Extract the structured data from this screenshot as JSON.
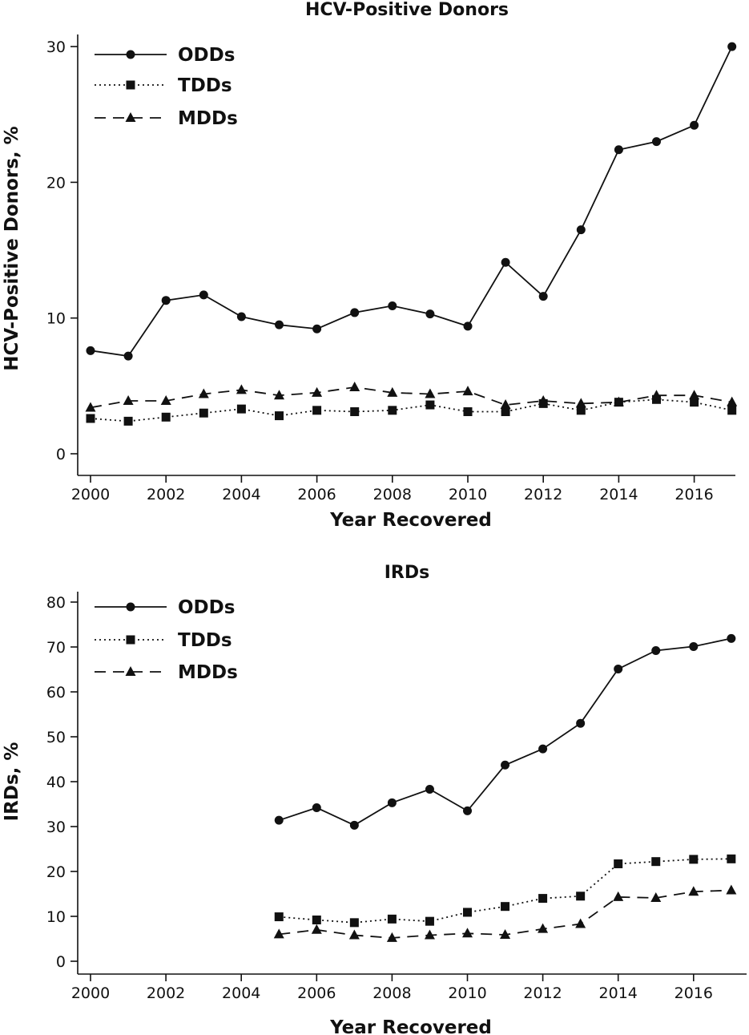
{
  "chart_data": [
    {
      "type": "line",
      "title": "HCV-Positive Donors",
      "xlabel": "Year Recovered",
      "ylabel": "HCV-Positive Donors, %",
      "xlim": [
        2000,
        2017
      ],
      "ylim": [
        0,
        30
      ],
      "x_ticks": [
        2000,
        2002,
        2004,
        2006,
        2008,
        2010,
        2012,
        2014,
        2016
      ],
      "y_ticks": [
        0,
        10,
        20,
        30
      ],
      "legend_position": "top-left",
      "grid": false,
      "series": [
        {
          "name": "ODDs",
          "marker": "circle",
          "dash": "solid",
          "x": [
            2000,
            2001,
            2002,
            2003,
            2004,
            2005,
            2006,
            2007,
            2008,
            2009,
            2010,
            2011,
            2012,
            2013,
            2014,
            2015,
            2016,
            2017
          ],
          "values": [
            7.6,
            7.2,
            11.3,
            11.7,
            10.1,
            9.5,
            9.2,
            10.4,
            10.9,
            10.3,
            9.4,
            14.1,
            11.6,
            16.5,
            22.4,
            23.0,
            24.2,
            30.0
          ]
        },
        {
          "name": "TDDs",
          "marker": "square",
          "dash": "dotted",
          "x": [
            2000,
            2001,
            2002,
            2003,
            2004,
            2005,
            2006,
            2007,
            2008,
            2009,
            2010,
            2011,
            2012,
            2013,
            2014,
            2015,
            2016,
            2017
          ],
          "values": [
            2.6,
            2.4,
            2.7,
            3.0,
            3.3,
            2.8,
            3.2,
            3.1,
            3.2,
            3.6,
            3.1,
            3.1,
            3.7,
            3.2,
            3.8,
            4.0,
            3.8,
            3.2
          ]
        },
        {
          "name": "MDDs",
          "marker": "triangle",
          "dash": "dashed",
          "x": [
            2000,
            2001,
            2002,
            2003,
            2004,
            2005,
            2006,
            2007,
            2008,
            2009,
            2010,
            2011,
            2012,
            2013,
            2014,
            2015,
            2016,
            2017
          ],
          "values": [
            3.4,
            3.9,
            3.9,
            4.4,
            4.7,
            4.3,
            4.5,
            4.9,
            4.5,
            4.4,
            4.6,
            3.6,
            3.9,
            3.7,
            3.8,
            4.3,
            4.3,
            3.8
          ]
        }
      ]
    },
    {
      "type": "line",
      "title": "IRDs",
      "xlabel": "Year Recovered",
      "ylabel": "IRDs, %",
      "xlim": [
        2000,
        2017.3
      ],
      "ylim": [
        0,
        80
      ],
      "x_ticks": [
        2000,
        2002,
        2004,
        2006,
        2008,
        2010,
        2012,
        2014,
        2016
      ],
      "y_ticks": [
        0,
        10,
        20,
        30,
        40,
        50,
        60,
        70,
        80
      ],
      "legend_position": "top-left",
      "grid": false,
      "series": [
        {
          "name": "ODDs",
          "marker": "circle",
          "dash": "solid",
          "x": [
            2005,
            2006,
            2007,
            2008,
            2009,
            2010,
            2011,
            2012,
            2013,
            2014,
            2015,
            2016,
            2017
          ],
          "values": [
            31.4,
            34.2,
            30.3,
            35.3,
            38.3,
            33.5,
            43.7,
            47.3,
            53.0,
            65.1,
            69.2,
            70.1,
            71.9
          ]
        },
        {
          "name": "TDDs",
          "marker": "square",
          "dash": "dotted",
          "x": [
            2005,
            2006,
            2007,
            2008,
            2009,
            2010,
            2011,
            2012,
            2013,
            2014,
            2015,
            2016,
            2017
          ],
          "values": [
            9.9,
            9.2,
            8.6,
            9.4,
            8.9,
            10.9,
            12.2,
            14.0,
            14.5,
            21.7,
            22.2,
            22.7,
            22.8
          ]
        },
        {
          "name": "MDDs",
          "marker": "triangle",
          "dash": "dashed",
          "x": [
            2005,
            2006,
            2007,
            2008,
            2009,
            2010,
            2011,
            2012,
            2013,
            2014,
            2015,
            2016,
            2017
          ],
          "values": [
            6.0,
            7.0,
            5.8,
            5.2,
            5.8,
            6.2,
            5.9,
            7.2,
            8.3,
            14.3,
            14.1,
            15.5,
            15.8
          ]
        }
      ]
    }
  ]
}
